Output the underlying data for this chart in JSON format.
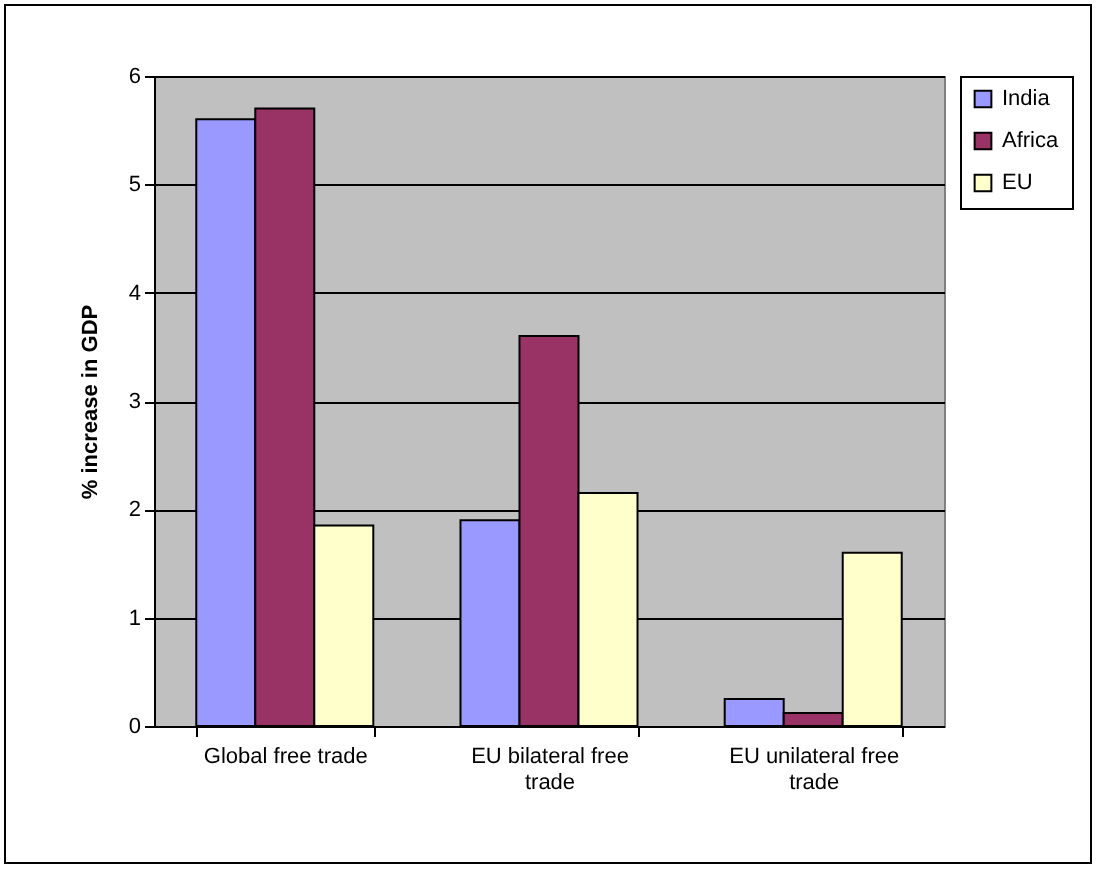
{
  "chart_data": {
    "type": "bar",
    "ylabel": "% increase in GDP",
    "categories": [
      "Global free trade",
      "EU bilateral free trade",
      "EU unilateral free trade"
    ],
    "series": [
      {
        "name": "India",
        "color": "#9999ff",
        "values": [
          5.6,
          1.9,
          0.25
        ]
      },
      {
        "name": "Africa",
        "color": "#993366",
        "values": [
          5.7,
          3.6,
          0.12
        ]
      },
      {
        "name": "EU",
        "color": "#ffffcc",
        "values": [
          1.85,
          2.15,
          1.6
        ]
      }
    ],
    "ylim": [
      0,
      6
    ],
    "yticks": [
      0,
      1,
      2,
      3,
      4,
      5,
      6
    ],
    "grid": "y",
    "legend": "right"
  }
}
